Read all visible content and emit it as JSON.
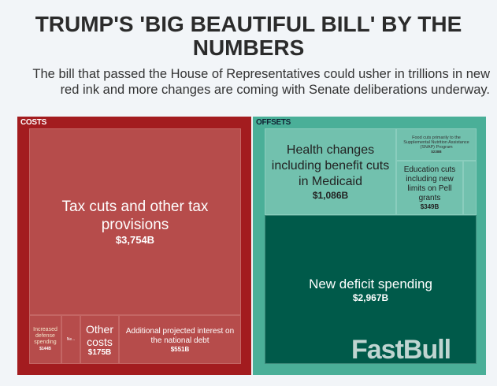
{
  "title": "TRUMP'S 'BIG BEAUTIFUL BILL' BY THE NUMBERS",
  "subtitle": "The bill that passed the House of Representatives could usher in trillions in new red ink and more changes are coming with Senate deliberations underway.",
  "watermark": "FastBull",
  "colors": {
    "costs": "#a31c1f",
    "cost_tile": "#b64c4b",
    "offsets": "#4aaf98",
    "offset_tile": "#72c1ae",
    "deficit": "#005a4a"
  },
  "chart_data": {
    "type": "treemap",
    "groups": [
      {
        "name": "COSTS",
        "items": [
          {
            "label": "Tax cuts and other tax provisions",
            "value_label": "$3,754B",
            "value": 3754
          },
          {
            "label": "Increased defense spending",
            "value_label": "$144B",
            "value": 144
          },
          {
            "label": "Ne...",
            "value_label": "",
            "value": null
          },
          {
            "label": "Other costs",
            "value_label": "$175B",
            "value": 175
          },
          {
            "label": "Additional projected interest on the national debt",
            "value_label": "$551B",
            "value": 551
          }
        ]
      },
      {
        "name": "OFFSETS",
        "items": [
          {
            "label": "Health changes including benefit cuts in Medicaid",
            "value_label": "$1,086B",
            "value": 1086
          },
          {
            "label": "Food cuts primarily to the Supplemental Nutrition Assistance (SNAP) Program",
            "value_label": "$238B",
            "value": 238
          },
          {
            "label": "Education cuts including new limits on Pell grants",
            "value_label": "$349B",
            "value": 349
          },
          {
            "label": "New deficit spending",
            "value_label": "$2,967B",
            "value": 2967
          }
        ]
      }
    ]
  }
}
